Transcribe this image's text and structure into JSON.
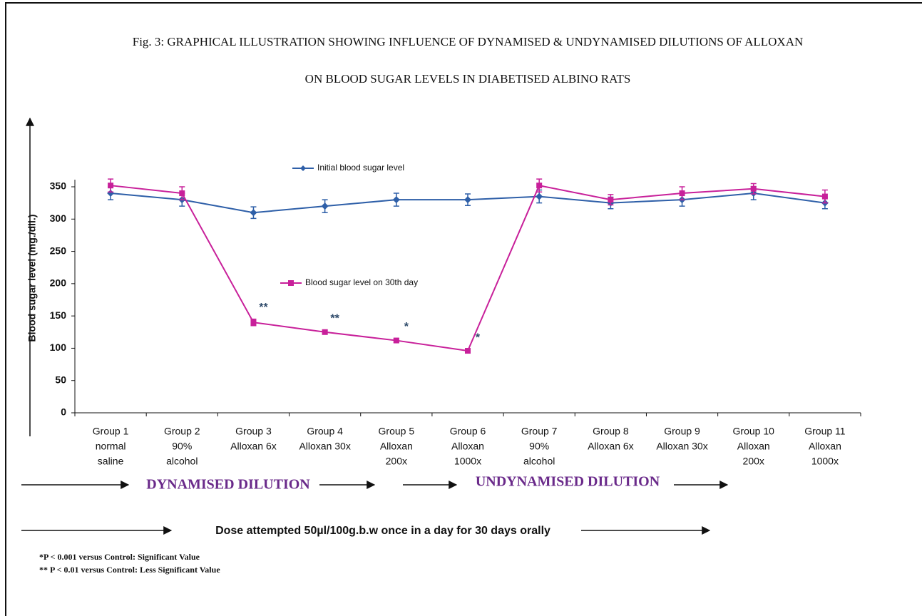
{
  "chart_data": {
    "type": "line",
    "title": [
      "Fig. 3: GRAPHICAL ILLUSTRATION SHOWING  INFLUENCE OF DYNAMISED & UNDYNAMISED DILUTIONS OF ALLOXAN",
      "ON BLOOD SUGAR LEVELS IN DIABETISED ALBINO RATS"
    ],
    "y_label": "Blood sugar level (mg./dll.)",
    "categories": [
      [
        "Group 1",
        "normal",
        "saline"
      ],
      [
        "Group 2",
        "90%",
        "alcohol"
      ],
      [
        "Group 3",
        "Alloxan 6x"
      ],
      [
        "Group 4",
        "Alloxan 30x"
      ],
      [
        "Group 5",
        "Alloxan",
        "200x"
      ],
      [
        "Group 6",
        "Alloxan",
        "1000x"
      ],
      [
        "Group 7",
        "90%",
        "alcohol"
      ],
      [
        "Group 8",
        "Alloxan 6x"
      ],
      [
        "Group 9",
        "Alloxan 30x"
      ],
      [
        "Group 10",
        "Alloxan",
        "200x"
      ],
      [
        "Group 11",
        "Alloxan",
        "1000x"
      ]
    ],
    "series": [
      {
        "name": "Initial blood sugar level",
        "color": "#2e5fa8",
        "values": [
          340,
          330,
          310,
          320,
          330,
          330,
          335,
          325,
          330,
          340,
          325
        ],
        "errors": [
          10,
          10,
          9,
          10,
          10,
          9,
          10,
          9,
          10,
          10,
          9
        ]
      },
      {
        "name": "Blood sugar level on 30th day",
        "color": "#c8209a",
        "values": [
          352,
          340,
          140,
          125,
          112,
          96,
          352,
          330,
          340,
          347,
          335
        ],
        "errors": [
          10,
          10,
          5,
          3,
          3,
          2,
          10,
          8,
          10,
          8,
          10
        ]
      }
    ],
    "significance": [
      null,
      null,
      "**",
      "**",
      "*",
      "*",
      null,
      null,
      null,
      null,
      null
    ],
    "ylim": [
      0,
      350
    ],
    "yticks": [
      0,
      50,
      100,
      150,
      200,
      250,
      300,
      350
    ],
    "group_labels": [
      "DYNAMISED DILUTION",
      "UNDYNAMISED DILUTION"
    ],
    "dose_note": "Dose attempted 50µl/100g.b.w once in a day  for 30 days orally",
    "footnotes": [
      "*P < 0.001 versus Control: Significant Value",
      "** P < 0.01 versus Control: Less Significant Value"
    ]
  }
}
